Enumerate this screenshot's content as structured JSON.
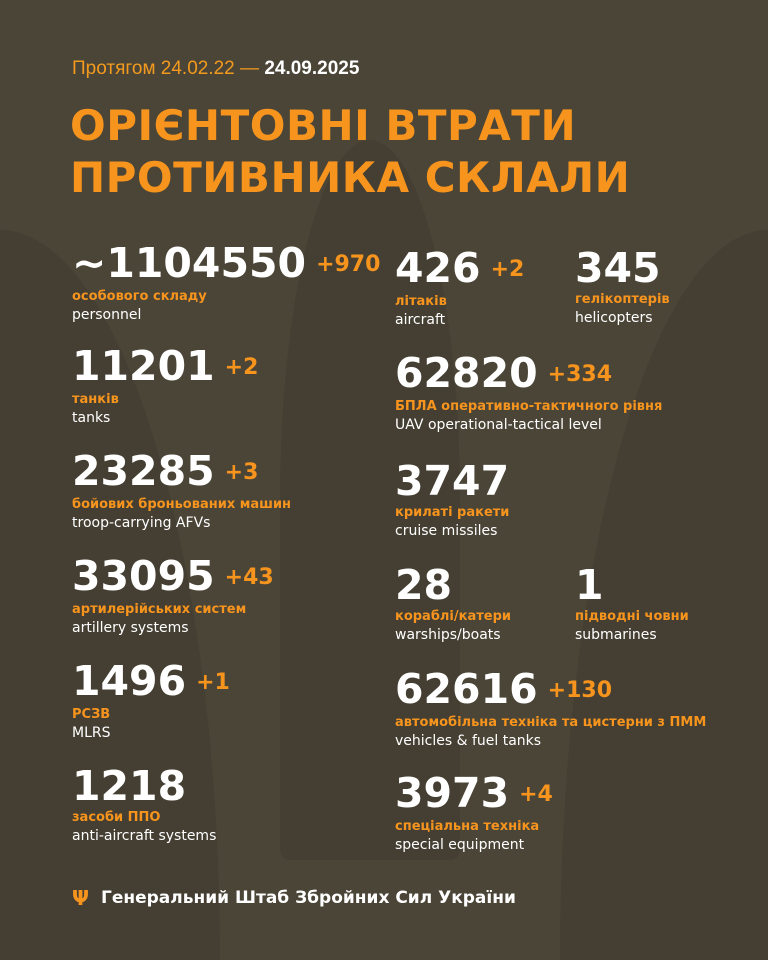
{
  "header": {
    "period_prefix": "Протягом 24.02.22 —",
    "period_end": "24.09.2025",
    "title_line1": "ОРІЄНТОВНІ ВТРАТИ",
    "title_line2": "ПРОТИВНИКА СКЛАЛИ"
  },
  "stats": [
    {
      "value": "~1104550",
      "delta": "+970",
      "ua": "особового складу",
      "en": "personnel"
    },
    {
      "value": "11201",
      "delta": "+2",
      "ua": "танків",
      "en": "tanks"
    },
    {
      "value": "23285",
      "delta": "+3",
      "ua": "бойових броньованих машин",
      "en": "troop-carrying AFVs"
    },
    {
      "value": "33095",
      "delta": "+43",
      "ua": "артилерійських систем",
      "en": "artillery systems"
    },
    {
      "value": "1496",
      "delta": "+1",
      "ua": "РСЗВ",
      "en": "MLRS"
    },
    {
      "value": "1218",
      "delta": "",
      "ua": "засоби ППО",
      "en": "anti-aircraft systems"
    },
    {
      "value": "426",
      "delta": "+2",
      "ua": "літаків",
      "en": "aircraft"
    },
    {
      "value": "345",
      "delta": "",
      "ua": "гелікоптерів",
      "en": "helicopters"
    },
    {
      "value": "62820",
      "delta": "+334",
      "ua": "БПЛА оперативно-тактичного рівня",
      "en": "UAV operational-tactical level"
    },
    {
      "value": "3747",
      "delta": "",
      "ua": "крилаті ракети",
      "en": "cruise missiles"
    },
    {
      "value": "28",
      "delta": "",
      "ua": "кораблі/катери",
      "en": "warships/boats"
    },
    {
      "value": "1",
      "delta": "",
      "ua": "підводні човни",
      "en": "submarines"
    },
    {
      "value": "62616",
      "delta": "+130",
      "ua": "автомобільна техніка та цистерни з ПММ",
      "en": "vehicles & fuel tanks"
    },
    {
      "value": "3973",
      "delta": "+4",
      "ua": "спеціальна техніка",
      "en": "special equipment"
    }
  ],
  "footer": {
    "icon": "trident-icon",
    "text": "Генеральний Штаб Збройних Сил України"
  },
  "colors": {
    "accent": "#f7941d",
    "background": "#4b4537"
  }
}
